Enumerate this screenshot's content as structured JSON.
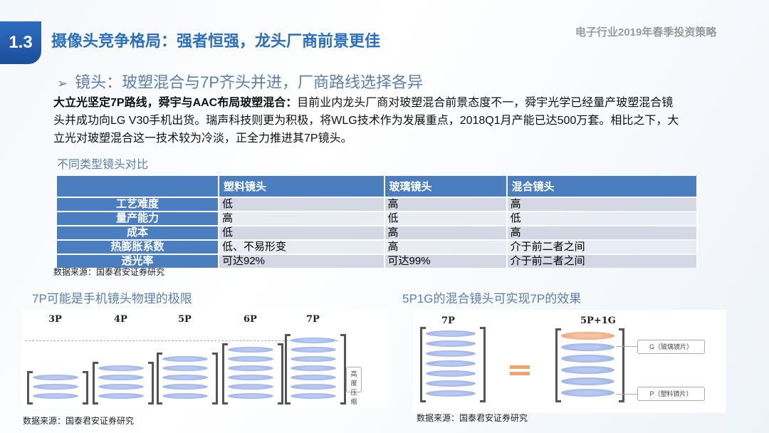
{
  "header": {
    "section_number": "1.3",
    "title": "摄像头竞争格局：强者恒强，龙头厂商前景更佳",
    "report_name": "电子行业2019年春季投资策略"
  },
  "subtitle": "镜头：玻塑混合与7P齐头并进，厂商路线选择各异",
  "body": {
    "lead": "大立光坚定7P路线，舜宇与AAC布局玻塑混合：",
    "text": "目前业内龙头厂商对玻塑混合前景态度不一，舜宇光学已经量产玻塑混合镜头并成功向LG V30手机出货。瑞声科技则更为积极，将WLG技术作为发展重点，2018Q1月产能已达500万套。相比之下，大立光对玻塑混合这一技术较为冷淡，正全力推进其7P镜头。"
  },
  "table": {
    "caption": "不同类型镜头对比",
    "headers": [
      "",
      "塑料镜头",
      "玻璃镜头",
      "混合镜头"
    ],
    "rows": [
      [
        "工艺难度",
        "低",
        "高",
        "高"
      ],
      [
        "量产能力",
        "高",
        "低",
        "低"
      ],
      [
        "成本",
        "低",
        "高",
        "高"
      ],
      [
        "热膨胀系数",
        "低、不易形变",
        "高",
        "介于前二者之间"
      ],
      [
        "透光率",
        "可达92%",
        "可达99%",
        "介于前二者之间"
      ]
    ],
    "source": "数据来源：国泰君安证券研究"
  },
  "left_figure": {
    "title": "7P可能是手机镜头物理的极限",
    "labels": [
      "3P",
      "4P",
      "5P",
      "6P",
      "7P"
    ],
    "counts": [
      3,
      4,
      5,
      6,
      7
    ],
    "note": "高度压缩",
    "source": "数据来源：国泰君安证券研究"
  },
  "right_figure": {
    "title": "5P1G的混合镜头可实现7P的效果",
    "labels": [
      "7P",
      "5P+1G"
    ],
    "glass_note": "G（玻璃镜片）",
    "plastic_note": "P（塑料镜片）",
    "source": "数据来源：国泰君安证券研究"
  }
}
